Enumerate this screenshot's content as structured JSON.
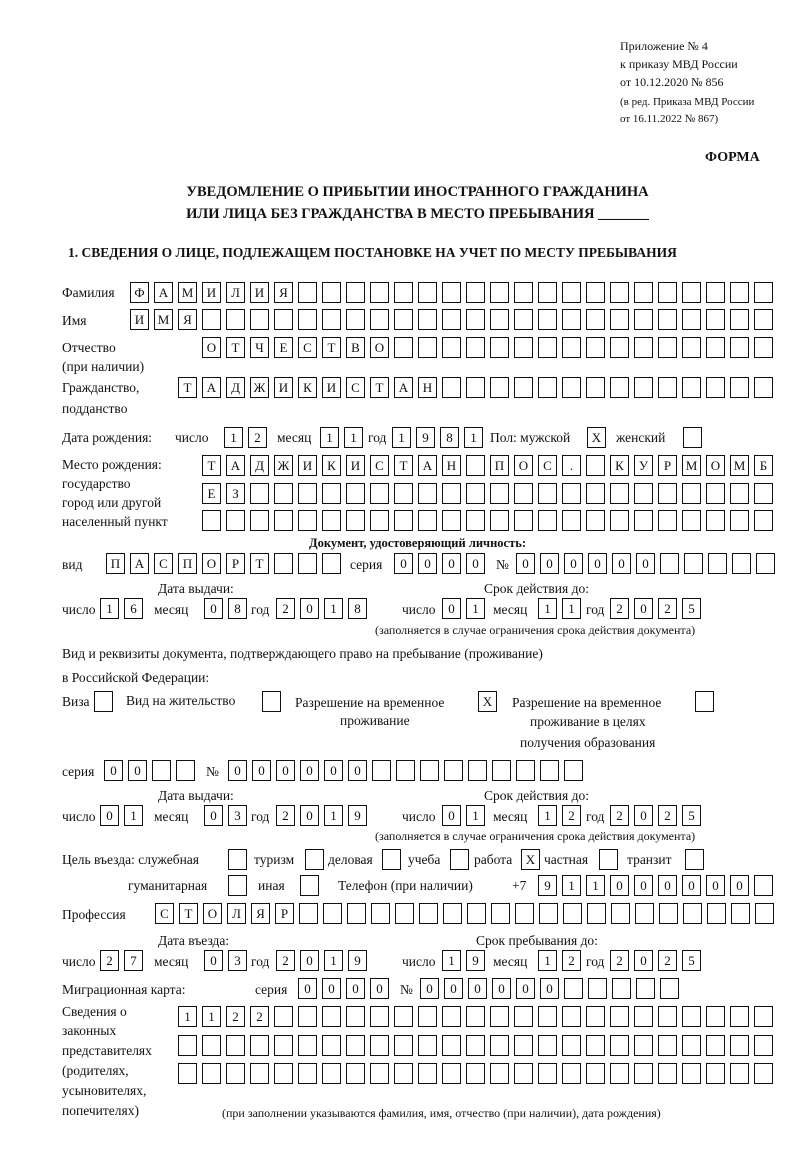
{
  "header": {
    "appendix": "Приложение № 4",
    "order": "к приказу МВД России",
    "order_date": "от 10.12.2020 № 856",
    "revision1": "(в ред. Приказа МВД России",
    "revision2": "от 16.11.2022 № 867)",
    "form_label": "ФОРМА",
    "title1": "УВЕДОМЛЕНИЕ О ПРИБЫТИИ ИНОСТРАННОГО ГРАЖДАНИНА",
    "title2": "ИЛИ ЛИЦА БЕЗ ГРАЖДАНСТВА В МЕСТО ПРЕБЫВАНИЯ _______",
    "section1": "1. СВЕДЕНИЯ О ЛИЦЕ, ПОДЛЕЖАЩЕМ ПОСТАНОВКЕ НА УЧЕТ ПО МЕСТУ ПРЕБЫВАНИЯ"
  },
  "labels": {
    "surname": "Фамилия",
    "name": "Имя",
    "patronymic": "Отчество",
    "patronymic2": "(при наличии)",
    "citizenship": "Гражданство,",
    "citizenship2": "подданство",
    "birth_date": "Дата рождения:",
    "day": "число",
    "month": "месяц",
    "year": "год",
    "sex": "Пол: мужской",
    "female": "женский",
    "birth_place": "Место рождения:",
    "birth_place2": "государство",
    "birth_place3": "город или другой",
    "birth_place4": "населенный пункт",
    "id_doc": "Документ, удостоверяющий личность:",
    "kind": "вид",
    "series": "серия",
    "number": "№",
    "issue_date": "Дата выдачи:",
    "valid_until": "Срок действия до:",
    "valid_note": "(заполняется в случае ограничения срока действия документа)",
    "right_doc": "Вид и реквизиты документа, подтверждающего право на пребывание (проживание)",
    "right_doc2": "в Российской Федерации:",
    "visa": "Виза",
    "residence": "Вид на жительство",
    "trp1": "Разрешение на временное",
    "trp2": "проживание",
    "trpe1": "Разрешение на временное",
    "trpe2": "проживание в целях",
    "trpe3": "получения образования",
    "purpose": "Цель въезда: служебная",
    "tourism": "туризм",
    "business": "деловая",
    "study": "учеба",
    "work": "работа",
    "private": "частная",
    "transit": "транзит",
    "humanitarian": "гуманитарная",
    "other": "иная",
    "phone": "Телефон (при наличии)",
    "phone_prefix": "+7",
    "profession": "Профессия",
    "entry_date": "Дата въезда:",
    "stay_until": "Срок пребывания до:",
    "migration_card": "Миграционная карта:",
    "reps1": "Сведения о",
    "reps2": "законных",
    "reps3": "представителях",
    "reps4": "(родителях,",
    "reps5": "усыновителях,",
    "reps6": "попечителях)",
    "reps_note": "(при заполнении указываются фамилия, имя, отчество (при наличии), дата рождения)"
  },
  "values": {
    "surname": "ФАМИЛИЯ",
    "name": "ИМЯ",
    "patronymic": "ОТЧЕСТВО",
    "citizenship": "ТАДЖИКИСТАН",
    "birth_day": "12",
    "birth_month": "11",
    "birth_year": "1981",
    "sex_male": "X",
    "sex_female": "",
    "birth_place_1": "ТАДЖИКИСТАН ПОС. КУРМОМБ",
    "birth_place_2": "ЕЗ",
    "birth_place_3": "",
    "doc_kind": "ПАСПОРТ",
    "doc_series": "0000",
    "doc_number": "000000",
    "doc_issue_day": "16",
    "doc_issue_month": "08",
    "doc_issue_year": "2018",
    "doc_valid_day": "01",
    "doc_valid_month": "11",
    "doc_valid_year": "2025",
    "visa": "",
    "residence": "",
    "trp": "X",
    "trp_education": "",
    "right_series": "00",
    "right_number": "000000",
    "right_issue_day": "01",
    "right_issue_month": "03",
    "right_issue_year": "2019",
    "right_valid_day": "01",
    "right_valid_month": "12",
    "right_valid_year": "2025",
    "purpose_official": "",
    "purpose_tourism": "",
    "purpose_business": "",
    "purpose_study": "",
    "purpose_work": "X",
    "purpose_private": "",
    "purpose_transit": "",
    "purpose_humanitarian": "",
    "purpose_other": "",
    "phone": "911000000",
    "profession": "СТОЛЯР",
    "entry_day": "27",
    "entry_month": "03",
    "entry_year": "2019",
    "stay_day": "19",
    "stay_month": "12",
    "stay_year": "2025",
    "mc_series": "0000",
    "mc_number": "000000",
    "reps_1": "1122",
    "reps_2": "",
    "reps_3": ""
  }
}
